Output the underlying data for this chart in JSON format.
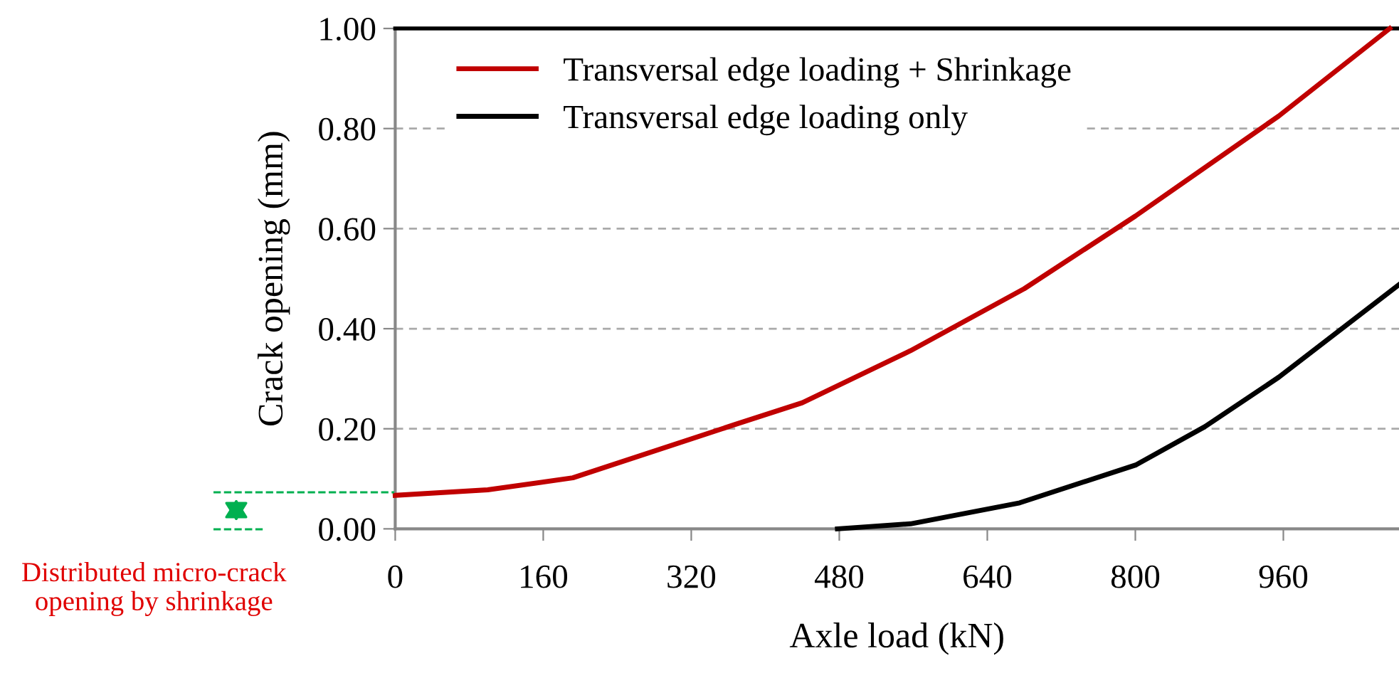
{
  "chart_data": {
    "type": "line",
    "xlabel": "Axle load (kN)",
    "ylabel": "Crack opening (mm)",
    "xlim": [
      0,
      1085
    ],
    "xticks": [
      0,
      160,
      320,
      480,
      640,
      800,
      960
    ],
    "ylim": [
      0,
      1.0
    ],
    "yticks": [
      {
        "value": 0,
        "label": "0.00"
      },
      {
        "value": 0.2,
        "label": "0.20"
      },
      {
        "value": 0.4,
        "label": "0.40"
      },
      {
        "value": 0.6,
        "label": "0.60"
      },
      {
        "value": 0.8,
        "label": "0.80"
      },
      {
        "value": 1.0,
        "label": "1.00"
      }
    ],
    "grid": "y",
    "legend": "top left",
    "marker": "none",
    "line_style": "solid",
    "series": [
      {
        "name": "Transversal edge loading + Shrinkage",
        "color": "#c00000",
        "x": [
          0,
          100,
          192,
          368,
          440,
          557,
          680,
          800,
          955,
          1075
        ],
        "values": [
          0.067,
          0.078,
          0.102,
          0.209,
          0.252,
          0.356,
          0.48,
          0.625,
          0.825,
          1.0
        ]
      },
      {
        "name": "Transversal edge loading only",
        "color": "#000000",
        "x": [
          478,
          557,
          675,
          801,
          875,
          955,
          1085
        ],
        "values": [
          0.0,
          0.01,
          0.052,
          0.128,
          0.204,
          0.303,
          0.488
        ]
      }
    ],
    "annotations": [
      "Distributed micro-crack opening by shrinkage"
    ]
  }
}
